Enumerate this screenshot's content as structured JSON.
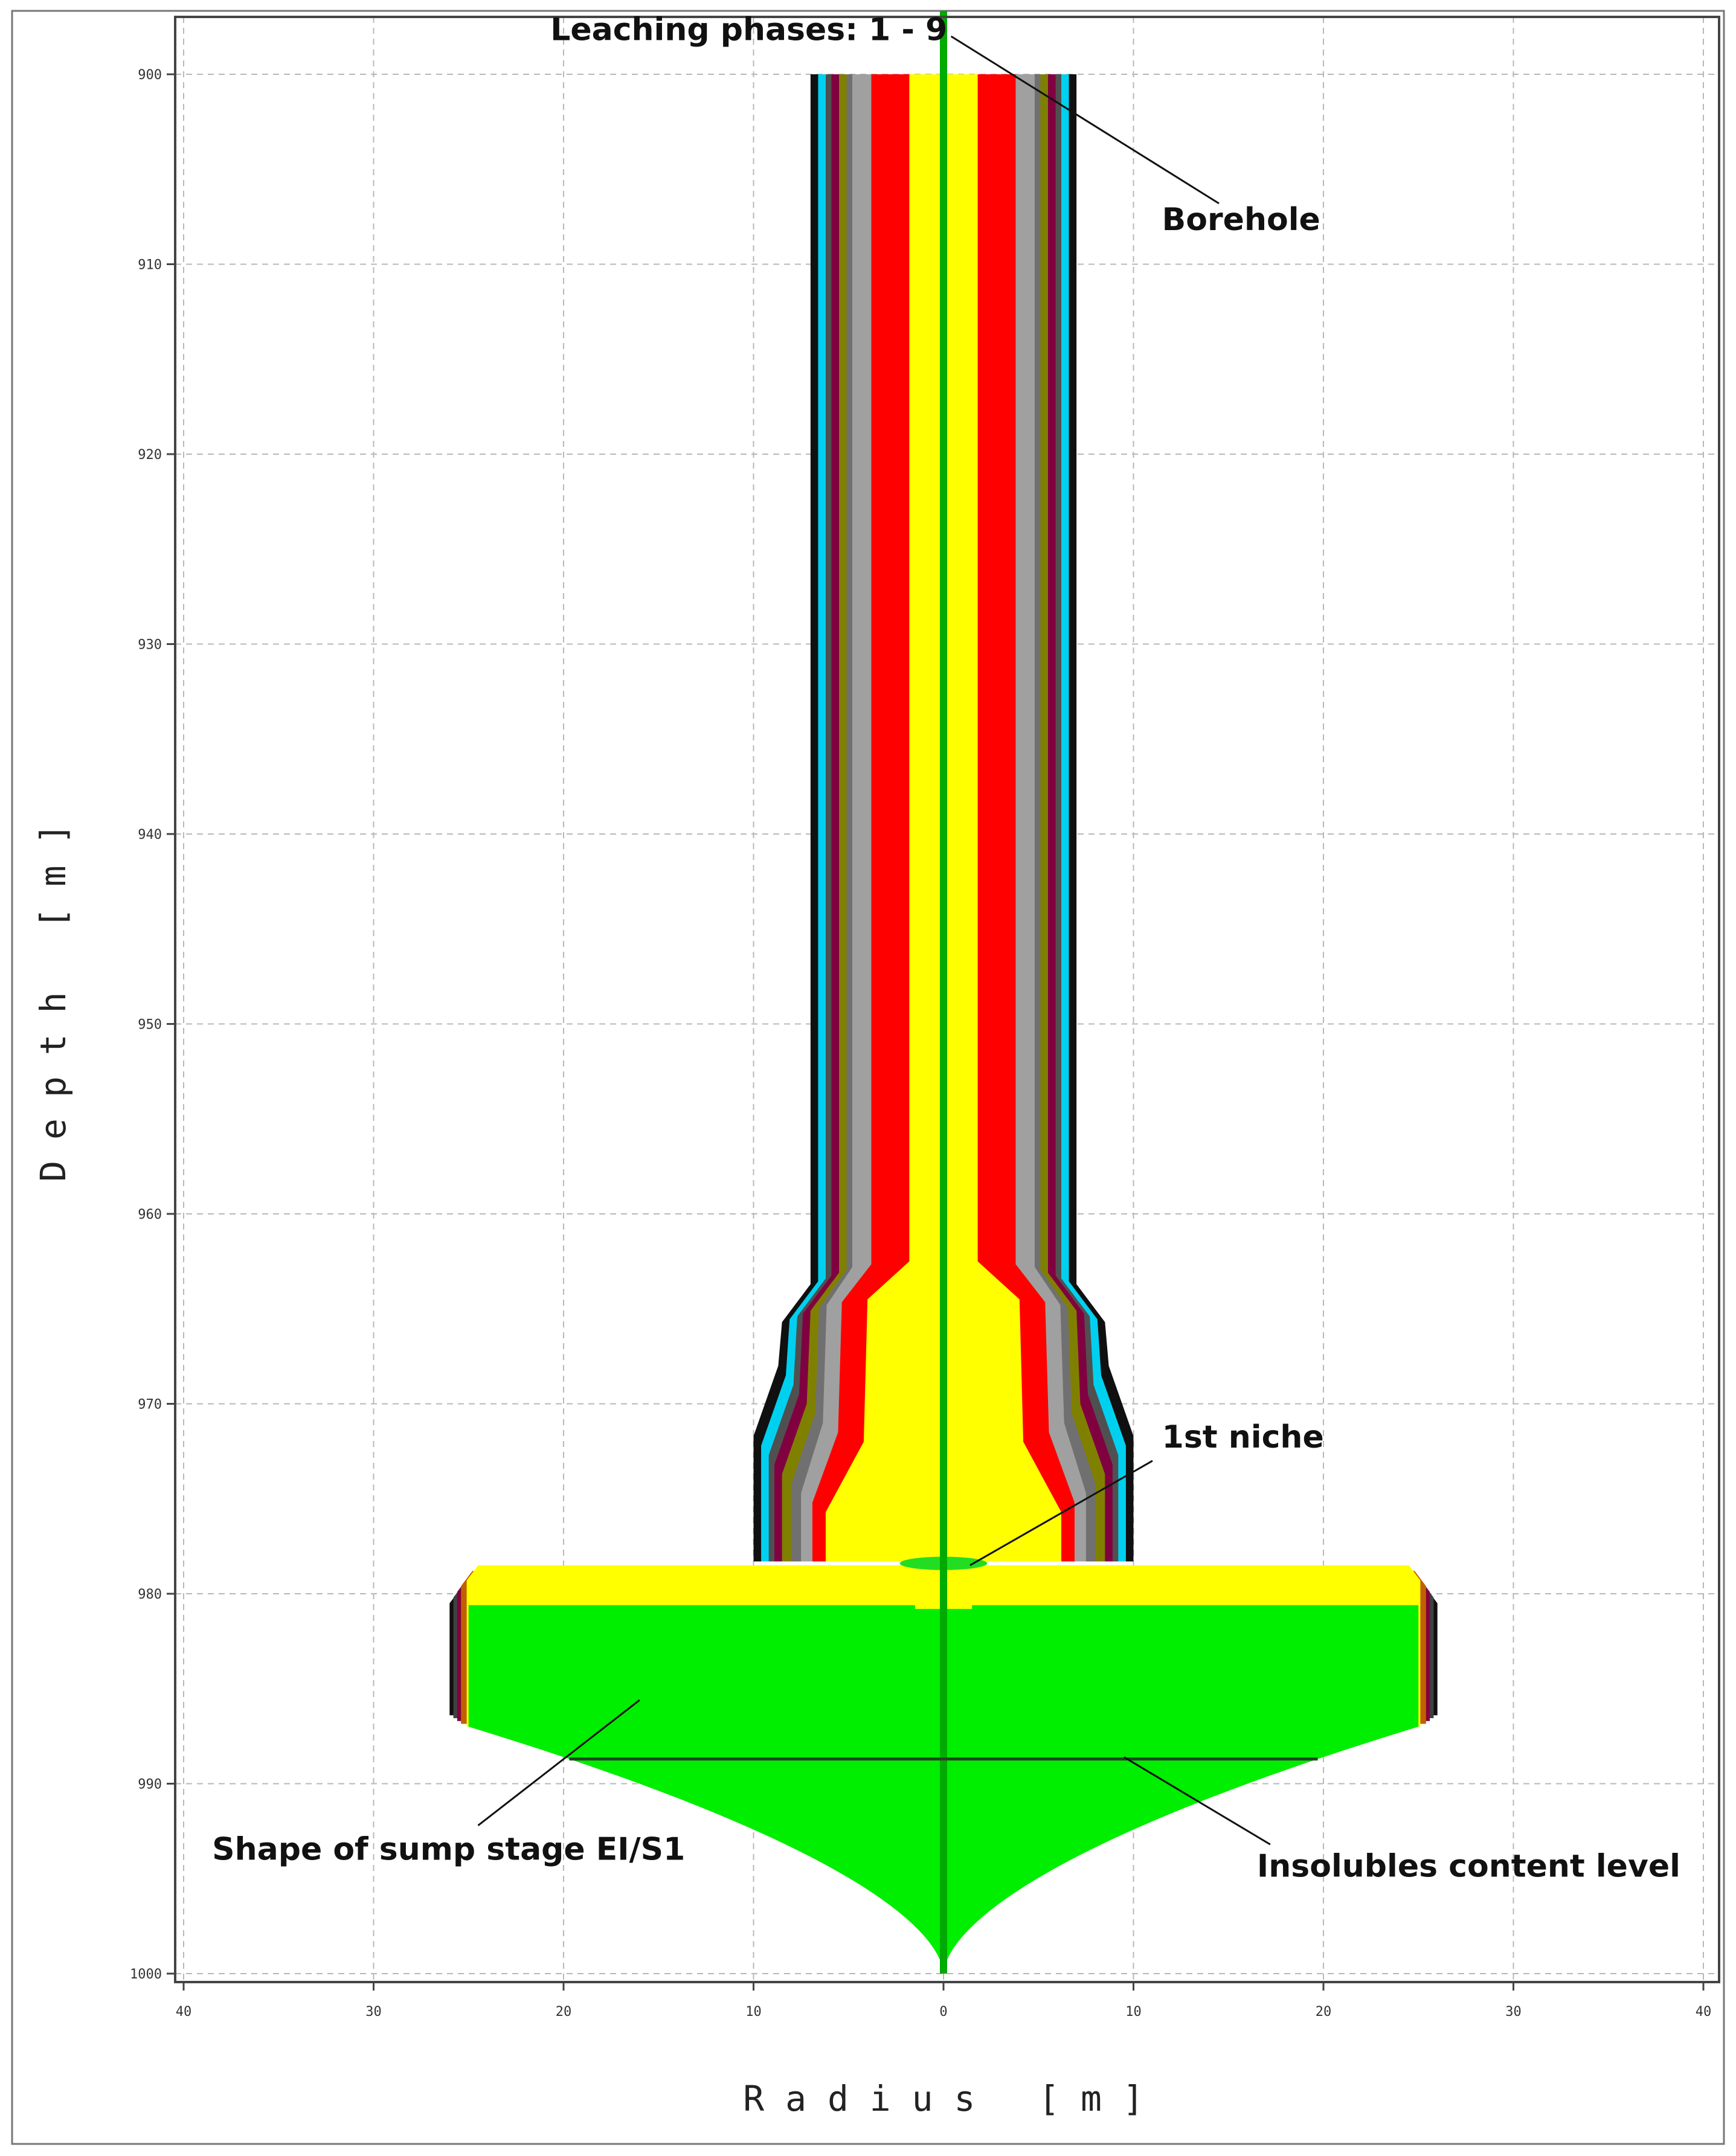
{
  "chart_data": {
    "type": "area",
    "xlabel": "R a d i u s   [ m ]",
    "ylabel": "D e p t h   [ m ]",
    "xlim": [
      -40,
      40
    ],
    "ylim": [
      900,
      1000
    ],
    "y_inverted": true,
    "x_ticks": [
      -40,
      -30,
      -20,
      -10,
      0,
      10,
      20,
      30,
      40
    ],
    "x_tick_labels": [
      "40",
      "30",
      "20",
      "10",
      "0",
      "10",
      "20",
      "30",
      "40"
    ],
    "y_ticks": [
      900,
      910,
      920,
      930,
      940,
      950,
      960,
      970,
      980,
      990,
      1000
    ],
    "y_tick_labels": [
      "900",
      "910",
      "920",
      "930",
      "940",
      "950",
      "960",
      "970",
      "980",
      "990",
      "1000"
    ],
    "grid": true,
    "annotations": [
      {
        "name": "leaching-phases-label",
        "text": "Leaching phases: 1 - 9",
        "x": 0.2,
        "y": 898.2
      },
      {
        "name": "borehole-label",
        "text": "Borehole",
        "x": 11.5,
        "y": 908.2
      },
      {
        "name": "first-niche-label",
        "text": "1st niche",
        "x": 11.5,
        "y": 972.3
      },
      {
        "name": "sump-stage-label",
        "text": "Shape of sump stage EI/S1",
        "x": -38.5,
        "y": 994.0
      },
      {
        "name": "insolubles-label",
        "text": "Insolubles content level",
        "x": 16.5,
        "y": 994.9
      }
    ],
    "leader_lines": [
      {
        "x1": 0.4,
        "y1": 898.0,
        "x2": 14.5,
        "y2": 906.8
      },
      {
        "x1": 11.0,
        "y1": 973.0,
        "x2": 1.4,
        "y2": 978.5
      },
      {
        "x1": -16.0,
        "y1": 985.6,
        "x2": -24.5,
        "y2": 992.2
      },
      {
        "x1": 9.5,
        "y1": 988.6,
        "x2": 17.2,
        "y2": 993.2
      }
    ],
    "leaching_phase_colors": [
      "#ffff00",
      "#ff0000",
      "#a0a0a0",
      "#707070",
      "#808000",
      "#800040",
      "#505050",
      "#00d0f0",
      "#101010"
    ],
    "leaching_phase_top_radius": [
      1.8,
      3.8,
      4.8,
      5.1,
      5.5,
      5.9,
      6.2,
      6.6,
      7.0
    ],
    "leaching_phase_bulge_radius": [
      6.2,
      6.9,
      7.5,
      8.0,
      8.5,
      8.9,
      9.2,
      9.6,
      10.0
    ],
    "sump_radius": 25.0,
    "sump_top_depth": 980.5,
    "sump_bottom_depth": 987.0,
    "sump_layers_radius": [
      25.1,
      25.4,
      25.6,
      25.8,
      26.0
    ],
    "sump_layer_colors": [
      "#ffff00",
      "#c06000",
      "#800040",
      "#404040",
      "#101010"
    ],
    "sump_fill_color": "#00ee00",
    "insolubles_level_depth": 988.7,
    "borehole_color": "#00aa00"
  }
}
